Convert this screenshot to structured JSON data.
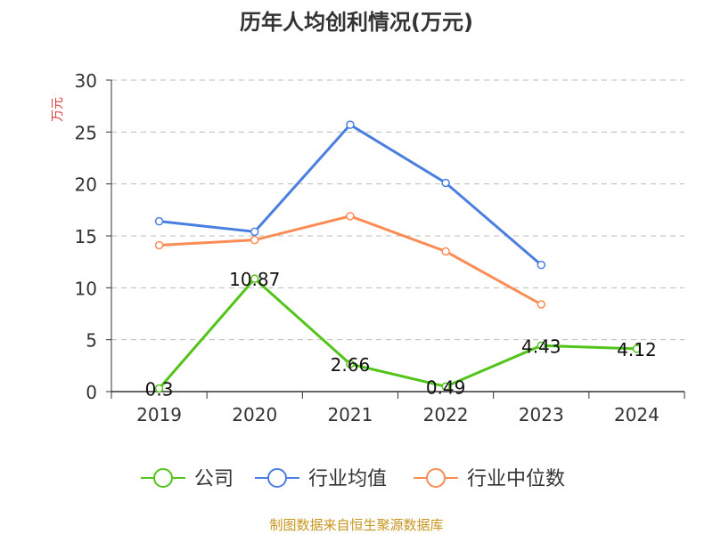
{
  "chart_data": {
    "type": "line",
    "title": "历年人均创利情况(万元)",
    "ylabel": "万元",
    "xlabel": "",
    "ylim": [
      0,
      30
    ],
    "yticks": [
      0,
      5,
      10,
      15,
      20,
      25,
      30
    ],
    "grid": true,
    "legend_position": "bottom",
    "categories": [
      "2019",
      "2020",
      "2021",
      "2022",
      "2023",
      "2024"
    ],
    "series": [
      {
        "name": "公司",
        "color": "#52c41a",
        "values": [
          0.3,
          10.87,
          2.66,
          0.49,
          4.43,
          4.12
        ],
        "labels": [
          "0.3",
          "10.87",
          "2.66",
          "0.49",
          "4.43",
          "4.12"
        ]
      },
      {
        "name": "行业均值",
        "color": "#4a7fe0",
        "values": [
          16.4,
          15.4,
          25.7,
          20.1,
          12.2,
          null
        ]
      },
      {
        "name": "行业中位数",
        "color": "#fb8c55",
        "values": [
          14.1,
          14.6,
          16.9,
          13.5,
          8.4,
          null
        ]
      }
    ]
  },
  "source": "制图数据来自恒生聚源数据库"
}
